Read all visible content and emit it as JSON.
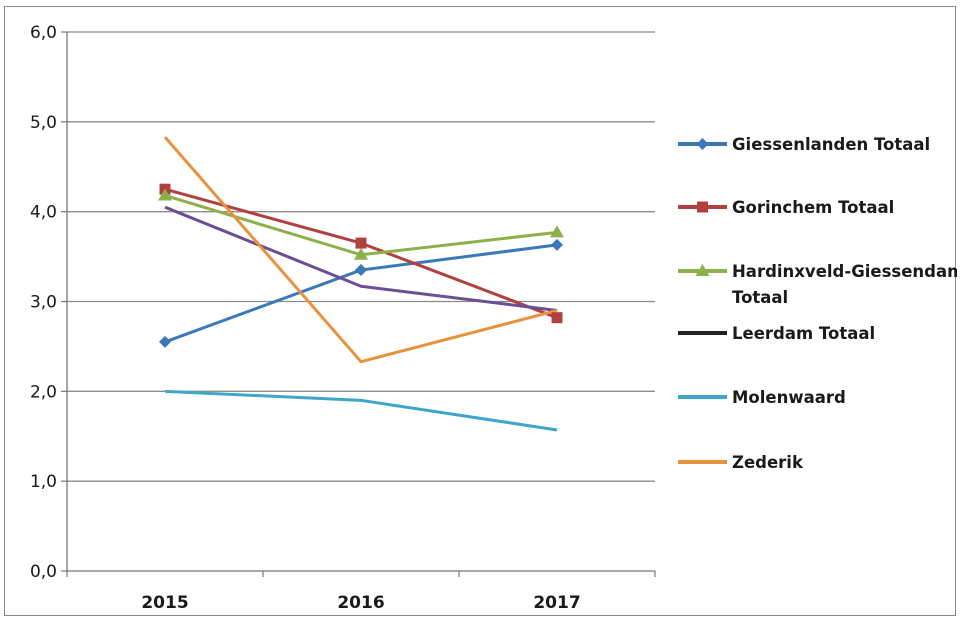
{
  "chart_data": {
    "type": "line",
    "title": "",
    "xlabel": "",
    "ylabel": "",
    "categories": [
      "2015",
      "2016",
      "2017"
    ],
    "ylim": [
      0,
      6
    ],
    "y_ticks": [
      "0,0",
      "1,0",
      "2,0",
      "3,0",
      "4,0",
      "5,0",
      "6,0"
    ],
    "grid": true,
    "legend_position": "right",
    "series": [
      {
        "name": "Giessenlanden Totaal",
        "color": "#3a78b8",
        "marker": "diamond",
        "values": [
          2.55,
          3.35,
          3.63
        ]
      },
      {
        "name": "Gorinchem Totaal",
        "color": "#b0413e",
        "marker": "square",
        "values": [
          4.25,
          3.65,
          2.82
        ]
      },
      {
        "name": "Hardinxveld-Giessendam Totaal",
        "color": "#8db04a",
        "marker": "triangle",
        "values": [
          4.18,
          3.52,
          3.77
        ]
      },
      {
        "name": "Leerdam Totaal",
        "color": "#6a4f93",
        "marker": "none",
        "legend_color": "#222222",
        "values": [
          4.05,
          3.17,
          2.9
        ]
      },
      {
        "name": "Molenwaard",
        "color": "#3ea7c9",
        "marker": "none",
        "values": [
          2.0,
          1.9,
          1.57
        ]
      },
      {
        "name": "Zederik",
        "color": "#e8923e",
        "marker": "none",
        "values": [
          4.83,
          2.33,
          2.9
        ]
      }
    ]
  }
}
